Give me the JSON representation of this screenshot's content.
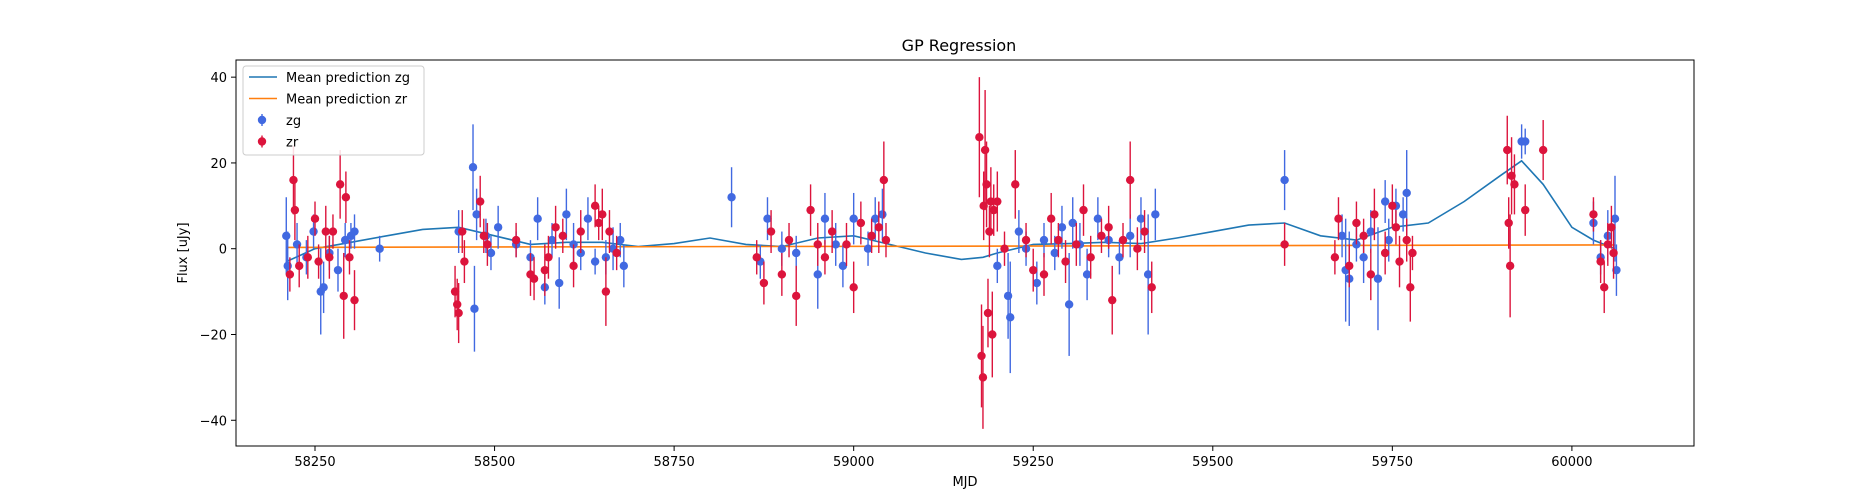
{
  "chart_data": {
    "type": "scatter",
    "title": "GP Regression",
    "xlabel": "MJD",
    "ylabel": "Flux [uJy]",
    "xlim": [
      58140,
      60170
    ],
    "ylim": [
      -46,
      44
    ],
    "xticks": [
      58250,
      58500,
      58750,
      59000,
      59250,
      59500,
      59750,
      60000
    ],
    "yticks": [
      -40,
      -20,
      0,
      20,
      40
    ],
    "legend_position": "upper left",
    "colors": {
      "zg": "#4169e1",
      "zr": "#dc143c",
      "mean_zg": "#1f77b4",
      "mean_zr": "#ff7f0e"
    },
    "lines": [
      {
        "name": "Mean prediction zg",
        "color": "#1f77b4",
        "x": [
          58210,
          58250,
          58300,
          58350,
          58400,
          58450,
          58500,
          58550,
          58600,
          58650,
          58700,
          58750,
          58800,
          58850,
          58900,
          58950,
          59000,
          59050,
          59100,
          59150,
          59180,
          59200,
          59250,
          59300,
          59350,
          59400,
          59450,
          59500,
          59550,
          59600,
          59650,
          59700,
          59750,
          59800,
          59850,
          59900,
          59930,
          59960,
          60000,
          60030,
          60060
        ],
        "y": [
          -3,
          0,
          1.5,
          3,
          4.5,
          5,
          3,
          1,
          1.5,
          1.5,
          0.5,
          1.2,
          2.5,
          1,
          0.5,
          2.5,
          3,
          1,
          -1,
          -2.5,
          -2,
          -1,
          1,
          1.2,
          1.5,
          1.2,
          2.5,
          4,
          5.5,
          6,
          3,
          2,
          5,
          6,
          11,
          17,
          20.5,
          15,
          5,
          2,
          0
        ]
      },
      {
        "name": "Mean prediction zr",
        "color": "#ff7f0e",
        "x": [
          58210,
          60060
        ],
        "y": [
          0.3,
          0.9
        ]
      }
    ],
    "series": [
      {
        "name": "zg",
        "color": "#4169e1",
        "points": [
          [
            58210,
            3,
            9
          ],
          [
            58212,
            -4,
            8
          ],
          [
            58225,
            1,
            5
          ],
          [
            58238,
            -2,
            4
          ],
          [
            58248,
            4,
            4
          ],
          [
            58258,
            -10,
            10
          ],
          [
            58262,
            -9,
            6
          ],
          [
            58270,
            -1,
            4
          ],
          [
            58282,
            -5,
            5
          ],
          [
            58292,
            2,
            4
          ],
          [
            58300,
            3,
            3
          ],
          [
            58305,
            4,
            4
          ],
          [
            58340,
            0,
            3
          ],
          [
            58450,
            4,
            5
          ],
          [
            58470,
            19,
            10
          ],
          [
            58472,
            -14,
            10
          ],
          [
            58475,
            8,
            6
          ],
          [
            58488,
            3,
            4
          ],
          [
            58495,
            -1,
            4
          ],
          [
            58505,
            5,
            5
          ],
          [
            58530,
            1,
            3
          ],
          [
            58550,
            -2,
            4
          ],
          [
            58560,
            7,
            5
          ],
          [
            58570,
            -9,
            4
          ],
          [
            58580,
            2,
            4
          ],
          [
            58590,
            -8,
            6
          ],
          [
            58600,
            8,
            6
          ],
          [
            58610,
            1,
            5
          ],
          [
            58620,
            -1,
            4
          ],
          [
            58630,
            7,
            5
          ],
          [
            58640,
            -3,
            3
          ],
          [
            58655,
            -2,
            4
          ],
          [
            58665,
            0,
            5
          ],
          [
            58675,
            2,
            4
          ],
          [
            58680,
            -4,
            5
          ],
          [
            58830,
            12,
            7
          ],
          [
            58870,
            -3,
            4
          ],
          [
            58880,
            7,
            5
          ],
          [
            58900,
            0,
            4
          ],
          [
            58920,
            -1,
            4
          ],
          [
            58950,
            -6,
            8
          ],
          [
            58960,
            7,
            6
          ],
          [
            58975,
            1,
            5
          ],
          [
            58985,
            -4,
            5
          ],
          [
            59000,
            7,
            6
          ],
          [
            59020,
            0,
            4
          ],
          [
            59030,
            7,
            5
          ],
          [
            59040,
            8,
            6
          ],
          [
            59200,
            -4,
            4
          ],
          [
            59215,
            -11,
            10
          ],
          [
            59218,
            -16,
            13
          ],
          [
            59230,
            4,
            5
          ],
          [
            59240,
            0,
            4
          ],
          [
            59255,
            -8,
            5
          ],
          [
            59265,
            2,
            4
          ],
          [
            59280,
            -1,
            4
          ],
          [
            59290,
            5,
            5
          ],
          [
            59300,
            -13,
            12
          ],
          [
            59305,
            6,
            6
          ],
          [
            59315,
            1,
            5
          ],
          [
            59325,
            -6,
            6
          ],
          [
            59340,
            7,
            5
          ],
          [
            59355,
            2,
            4
          ],
          [
            59370,
            -2,
            4
          ],
          [
            59385,
            3,
            5
          ],
          [
            59400,
            7,
            5
          ],
          [
            59410,
            -6,
            14
          ],
          [
            59420,
            8,
            6
          ],
          [
            59600,
            16,
            7
          ],
          [
            59680,
            3,
            5
          ],
          [
            59685,
            -5,
            12
          ],
          [
            59690,
            -7,
            11
          ],
          [
            59700,
            1,
            4
          ],
          [
            59710,
            -2,
            6
          ],
          [
            59720,
            4,
            5
          ],
          [
            59730,
            -7,
            12
          ],
          [
            59740,
            11,
            5
          ],
          [
            59745,
            2,
            5
          ],
          [
            59755,
            10,
            4
          ],
          [
            59765,
            8,
            4
          ],
          [
            59770,
            13,
            10
          ],
          [
            59930,
            25,
            4
          ],
          [
            59935,
            25,
            3
          ],
          [
            60030,
            6,
            5
          ],
          [
            60040,
            -2,
            4
          ],
          [
            60050,
            3,
            6
          ],
          [
            60060,
            7,
            10
          ],
          [
            60062,
            -5,
            6
          ]
        ]
      },
      {
        "name": "zr",
        "color": "#dc143c",
        "points": [
          [
            58215,
            -6,
            4
          ],
          [
            58220,
            16,
            8
          ],
          [
            58222,
            9,
            7
          ],
          [
            58228,
            -4,
            5
          ],
          [
            58240,
            -2,
            5
          ],
          [
            58250,
            7,
            4
          ],
          [
            58255,
            -3,
            4
          ],
          [
            58265,
            4,
            6
          ],
          [
            58270,
            -2,
            5
          ],
          [
            58275,
            4,
            4
          ],
          [
            58285,
            15,
            8
          ],
          [
            58290,
            -11,
            10
          ],
          [
            58293,
            12,
            6
          ],
          [
            58298,
            -2,
            4
          ],
          [
            58305,
            -12,
            7
          ],
          [
            58445,
            -10,
            6
          ],
          [
            58448,
            -13,
            6
          ],
          [
            58450,
            -15,
            7
          ],
          [
            58455,
            4,
            5
          ],
          [
            58458,
            -3,
            5
          ],
          [
            58480,
            11,
            6
          ],
          [
            58485,
            3,
            4
          ],
          [
            58490,
            1,
            5
          ],
          [
            58530,
            2,
            4
          ],
          [
            58550,
            -6,
            5
          ],
          [
            58555,
            -7,
            5
          ],
          [
            58570,
            -5,
            6
          ],
          [
            58575,
            -2,
            5
          ],
          [
            58585,
            5,
            5
          ],
          [
            58595,
            3,
            4
          ],
          [
            58610,
            -4,
            5
          ],
          [
            58620,
            4,
            5
          ],
          [
            58640,
            10,
            5
          ],
          [
            58645,
            6,
            4
          ],
          [
            58650,
            8,
            6
          ],
          [
            58655,
            -10,
            8
          ],
          [
            58660,
            4,
            5
          ],
          [
            58670,
            -1,
            4
          ],
          [
            58865,
            -2,
            4
          ],
          [
            58875,
            -8,
            5
          ],
          [
            58885,
            4,
            5
          ],
          [
            58900,
            -6,
            5
          ],
          [
            58910,
            2,
            4
          ],
          [
            58920,
            -11,
            7
          ],
          [
            58940,
            9,
            6
          ],
          [
            58950,
            1,
            5
          ],
          [
            58960,
            -2,
            4
          ],
          [
            58970,
            4,
            5
          ],
          [
            58990,
            1,
            5
          ],
          [
            59000,
            -9,
            6
          ],
          [
            59010,
            6,
            5
          ],
          [
            59025,
            3,
            4
          ],
          [
            59035,
            5,
            6
          ],
          [
            59042,
            16,
            9
          ],
          [
            59045,
            2,
            4
          ],
          [
            59175,
            26,
            14
          ],
          [
            59178,
            -25,
            12
          ],
          [
            59180,
            -30,
            12
          ],
          [
            59181,
            10,
            8
          ],
          [
            59183,
            23,
            14
          ],
          [
            59185,
            15,
            10
          ],
          [
            59187,
            -15,
            8
          ],
          [
            59189,
            4,
            6
          ],
          [
            59191,
            11,
            8
          ],
          [
            59193,
            -20,
            10
          ],
          [
            59195,
            9,
            6
          ],
          [
            59200,
            11,
            7
          ],
          [
            59210,
            0,
            4
          ],
          [
            59225,
            15,
            8
          ],
          [
            59240,
            2,
            4
          ],
          [
            59250,
            -5,
            5
          ],
          [
            59265,
            -6,
            5
          ],
          [
            59275,
            7,
            6
          ],
          [
            59285,
            2,
            4
          ],
          [
            59295,
            -3,
            5
          ],
          [
            59310,
            1,
            5
          ],
          [
            59320,
            9,
            6
          ],
          [
            59330,
            -2,
            5
          ],
          [
            59345,
            3,
            4
          ],
          [
            59355,
            5,
            5
          ],
          [
            59360,
            -12,
            8
          ],
          [
            59375,
            2,
            4
          ],
          [
            59385,
            16,
            9
          ],
          [
            59395,
            0,
            5
          ],
          [
            59405,
            4,
            5
          ],
          [
            59415,
            -9,
            6
          ],
          [
            59600,
            1,
            5
          ],
          [
            59670,
            -2,
            4
          ],
          [
            59675,
            7,
            5
          ],
          [
            59690,
            -4,
            5
          ],
          [
            59700,
            6,
            5
          ],
          [
            59710,
            3,
            4
          ],
          [
            59720,
            -6,
            6
          ],
          [
            59725,
            8,
            6
          ],
          [
            59740,
            -1,
            5
          ],
          [
            59750,
            10,
            5
          ],
          [
            59755,
            5,
            4
          ],
          [
            59760,
            -3,
            6
          ],
          [
            59770,
            2,
            5
          ],
          [
            59775,
            -9,
            8
          ],
          [
            59778,
            -1,
            4
          ],
          [
            59910,
            23,
            8
          ],
          [
            59912,
            6,
            6
          ],
          [
            59914,
            -4,
            12
          ],
          [
            59916,
            17,
            9
          ],
          [
            59920,
            15,
            7
          ],
          [
            59935,
            9,
            6
          ],
          [
            59960,
            23,
            7
          ],
          [
            60030,
            8,
            4
          ],
          [
            60040,
            -3,
            5
          ],
          [
            60045,
            -9,
            6
          ],
          [
            60050,
            1,
            5
          ],
          [
            60055,
            5,
            5
          ],
          [
            60058,
            -1,
            6
          ]
        ]
      }
    ]
  }
}
